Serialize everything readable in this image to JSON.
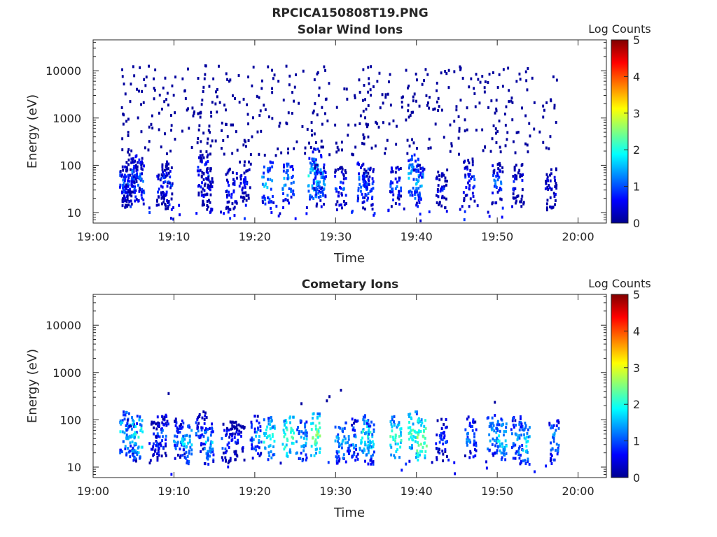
{
  "figure": {
    "title": "RPCICA150808T19.PNG"
  },
  "chart_data": [
    {
      "type": "heatmap",
      "title": "Solar Wind Ions",
      "xlabel": "Time",
      "ylabel": "Energy (eV)",
      "x_ticks": [
        "19:00",
        "19:10",
        "19:20",
        "19:30",
        "19:40",
        "19:50",
        "20:00"
      ],
      "x_range_minutes": [
        0,
        63.5
      ],
      "y_ticks": [
        "10",
        "100",
        "1000",
        "10000"
      ],
      "y_tick_values": [
        10,
        100,
        1000,
        10000
      ],
      "y_range_eV": [
        6,
        45000
      ],
      "y_scale": "log",
      "colorbar": {
        "label": "Log Counts",
        "ticks": [
          "0",
          "1",
          "2",
          "3",
          "4",
          "5"
        ],
        "range": [
          0,
          5
        ],
        "colormap": "jet"
      },
      "bursts": [
        {
          "t": 3.6,
          "e": 40,
          "v": 1.4
        },
        {
          "t": 4.1,
          "e": 32,
          "v": 1.2
        },
        {
          "t": 4.5,
          "e": 45,
          "v": 1.1
        },
        {
          "t": 5.3,
          "e": 70,
          "v": 1.3
        },
        {
          "t": 5.5,
          "e": 40,
          "v": 1.5
        },
        {
          "t": 8.5,
          "e": 30,
          "v": 1.1
        },
        {
          "t": 9.0,
          "e": 40,
          "v": 1.2
        },
        {
          "t": 13.5,
          "e": 60,
          "v": 1.3
        },
        {
          "t": 14.0,
          "e": 30,
          "v": 1.0
        },
        {
          "t": 17.0,
          "e": 30,
          "v": 1.1
        },
        {
          "t": 18.7,
          "e": 40,
          "v": 1.0
        },
        {
          "t": 21.5,
          "e": 40,
          "v": 1.9
        },
        {
          "t": 24.0,
          "e": 40,
          "v": 1.8
        },
        {
          "t": 27.2,
          "e": 50,
          "v": 2.2
        },
        {
          "t": 27.7,
          "e": 80,
          "v": 1.8
        },
        {
          "t": 28.0,
          "e": 35,
          "v": 1.6
        },
        {
          "t": 30.5,
          "e": 30,
          "v": 1.3
        },
        {
          "t": 33.3,
          "e": 40,
          "v": 1.7
        },
        {
          "t": 33.9,
          "e": 30,
          "v": 1.3
        },
        {
          "t": 37.3,
          "e": 35,
          "v": 1.4
        },
        {
          "t": 39.6,
          "e": 55,
          "v": 2.0
        },
        {
          "t": 40.2,
          "e": 35,
          "v": 1.8
        },
        {
          "t": 43.0,
          "e": 30,
          "v": 1.0
        },
        {
          "t": 46.4,
          "e": 45,
          "v": 1.2
        },
        {
          "t": 49.9,
          "e": 40,
          "v": 1.4
        },
        {
          "t": 52.5,
          "e": 35,
          "v": 1.0
        },
        {
          "t": 56.5,
          "e": 30,
          "v": 1.0
        }
      ],
      "scatter_range_eV": [
        150,
        12000
      ]
    },
    {
      "type": "heatmap",
      "title": "Cometary Ions",
      "xlabel": "Time",
      "ylabel": "Energy (eV)",
      "x_ticks": [
        "19:00",
        "19:10",
        "19:20",
        "19:30",
        "19:40",
        "19:50",
        "20:00"
      ],
      "x_range_minutes": [
        0,
        63.5
      ],
      "y_ticks": [
        "10",
        "100",
        "1000",
        "10000"
      ],
      "y_tick_values": [
        10,
        100,
        1000,
        10000
      ],
      "y_range_eV": [
        6,
        45000
      ],
      "y_scale": "log",
      "colorbar": {
        "label": "Log Counts",
        "ticks": [
          "0",
          "1",
          "2",
          "3",
          "4",
          "5"
        ],
        "range": [
          0,
          5
        ],
        "colormap": "jet"
      },
      "bursts": [
        {
          "t": 3.8,
          "e": 50,
          "v": 2.1
        },
        {
          "t": 4.6,
          "e": 35,
          "v": 1.7
        },
        {
          "t": 5.3,
          "e": 40,
          "v": 2.4
        },
        {
          "t": 7.5,
          "e": 30,
          "v": 1.2
        },
        {
          "t": 8.5,
          "e": 45,
          "v": 1.5
        },
        {
          "t": 10.5,
          "e": 35,
          "v": 1.6
        },
        {
          "t": 11.5,
          "e": 30,
          "v": 2.1
        },
        {
          "t": 13.3,
          "e": 50,
          "v": 1.4
        },
        {
          "t": 14.2,
          "e": 30,
          "v": 1.9
        },
        {
          "t": 16.5,
          "e": 30,
          "v": 1.3
        },
        {
          "t": 18.0,
          "e": 35,
          "v": 1.0
        },
        {
          "t": 20.0,
          "e": 40,
          "v": 1.7
        },
        {
          "t": 21.7,
          "e": 40,
          "v": 2.3
        },
        {
          "t": 24.0,
          "e": 40,
          "v": 2.6
        },
        {
          "t": 25.7,
          "e": 35,
          "v": 1.9
        },
        {
          "t": 27.5,
          "e": 45,
          "v": 2.8
        },
        {
          "t": 30.5,
          "e": 30,
          "v": 1.9
        },
        {
          "t": 32.0,
          "e": 35,
          "v": 1.7
        },
        {
          "t": 33.5,
          "e": 45,
          "v": 2.3
        },
        {
          "t": 34.0,
          "e": 30,
          "v": 2.0
        },
        {
          "t": 37.3,
          "e": 40,
          "v": 2.4
        },
        {
          "t": 39.5,
          "e": 50,
          "v": 2.5
        },
        {
          "t": 40.5,
          "e": 35,
          "v": 2.9
        },
        {
          "t": 43.0,
          "e": 35,
          "v": 1.4
        },
        {
          "t": 46.6,
          "e": 40,
          "v": 1.6
        },
        {
          "t": 49.3,
          "e": 45,
          "v": 1.9
        },
        {
          "t": 50.5,
          "e": 35,
          "v": 2.1
        },
        {
          "t": 52.3,
          "e": 40,
          "v": 1.8
        },
        {
          "t": 53.2,
          "e": 30,
          "v": 2.1
        },
        {
          "t": 56.9,
          "e": 35,
          "v": 1.8
        }
      ],
      "scatter_range_eV": [
        200,
        400
      ]
    }
  ]
}
